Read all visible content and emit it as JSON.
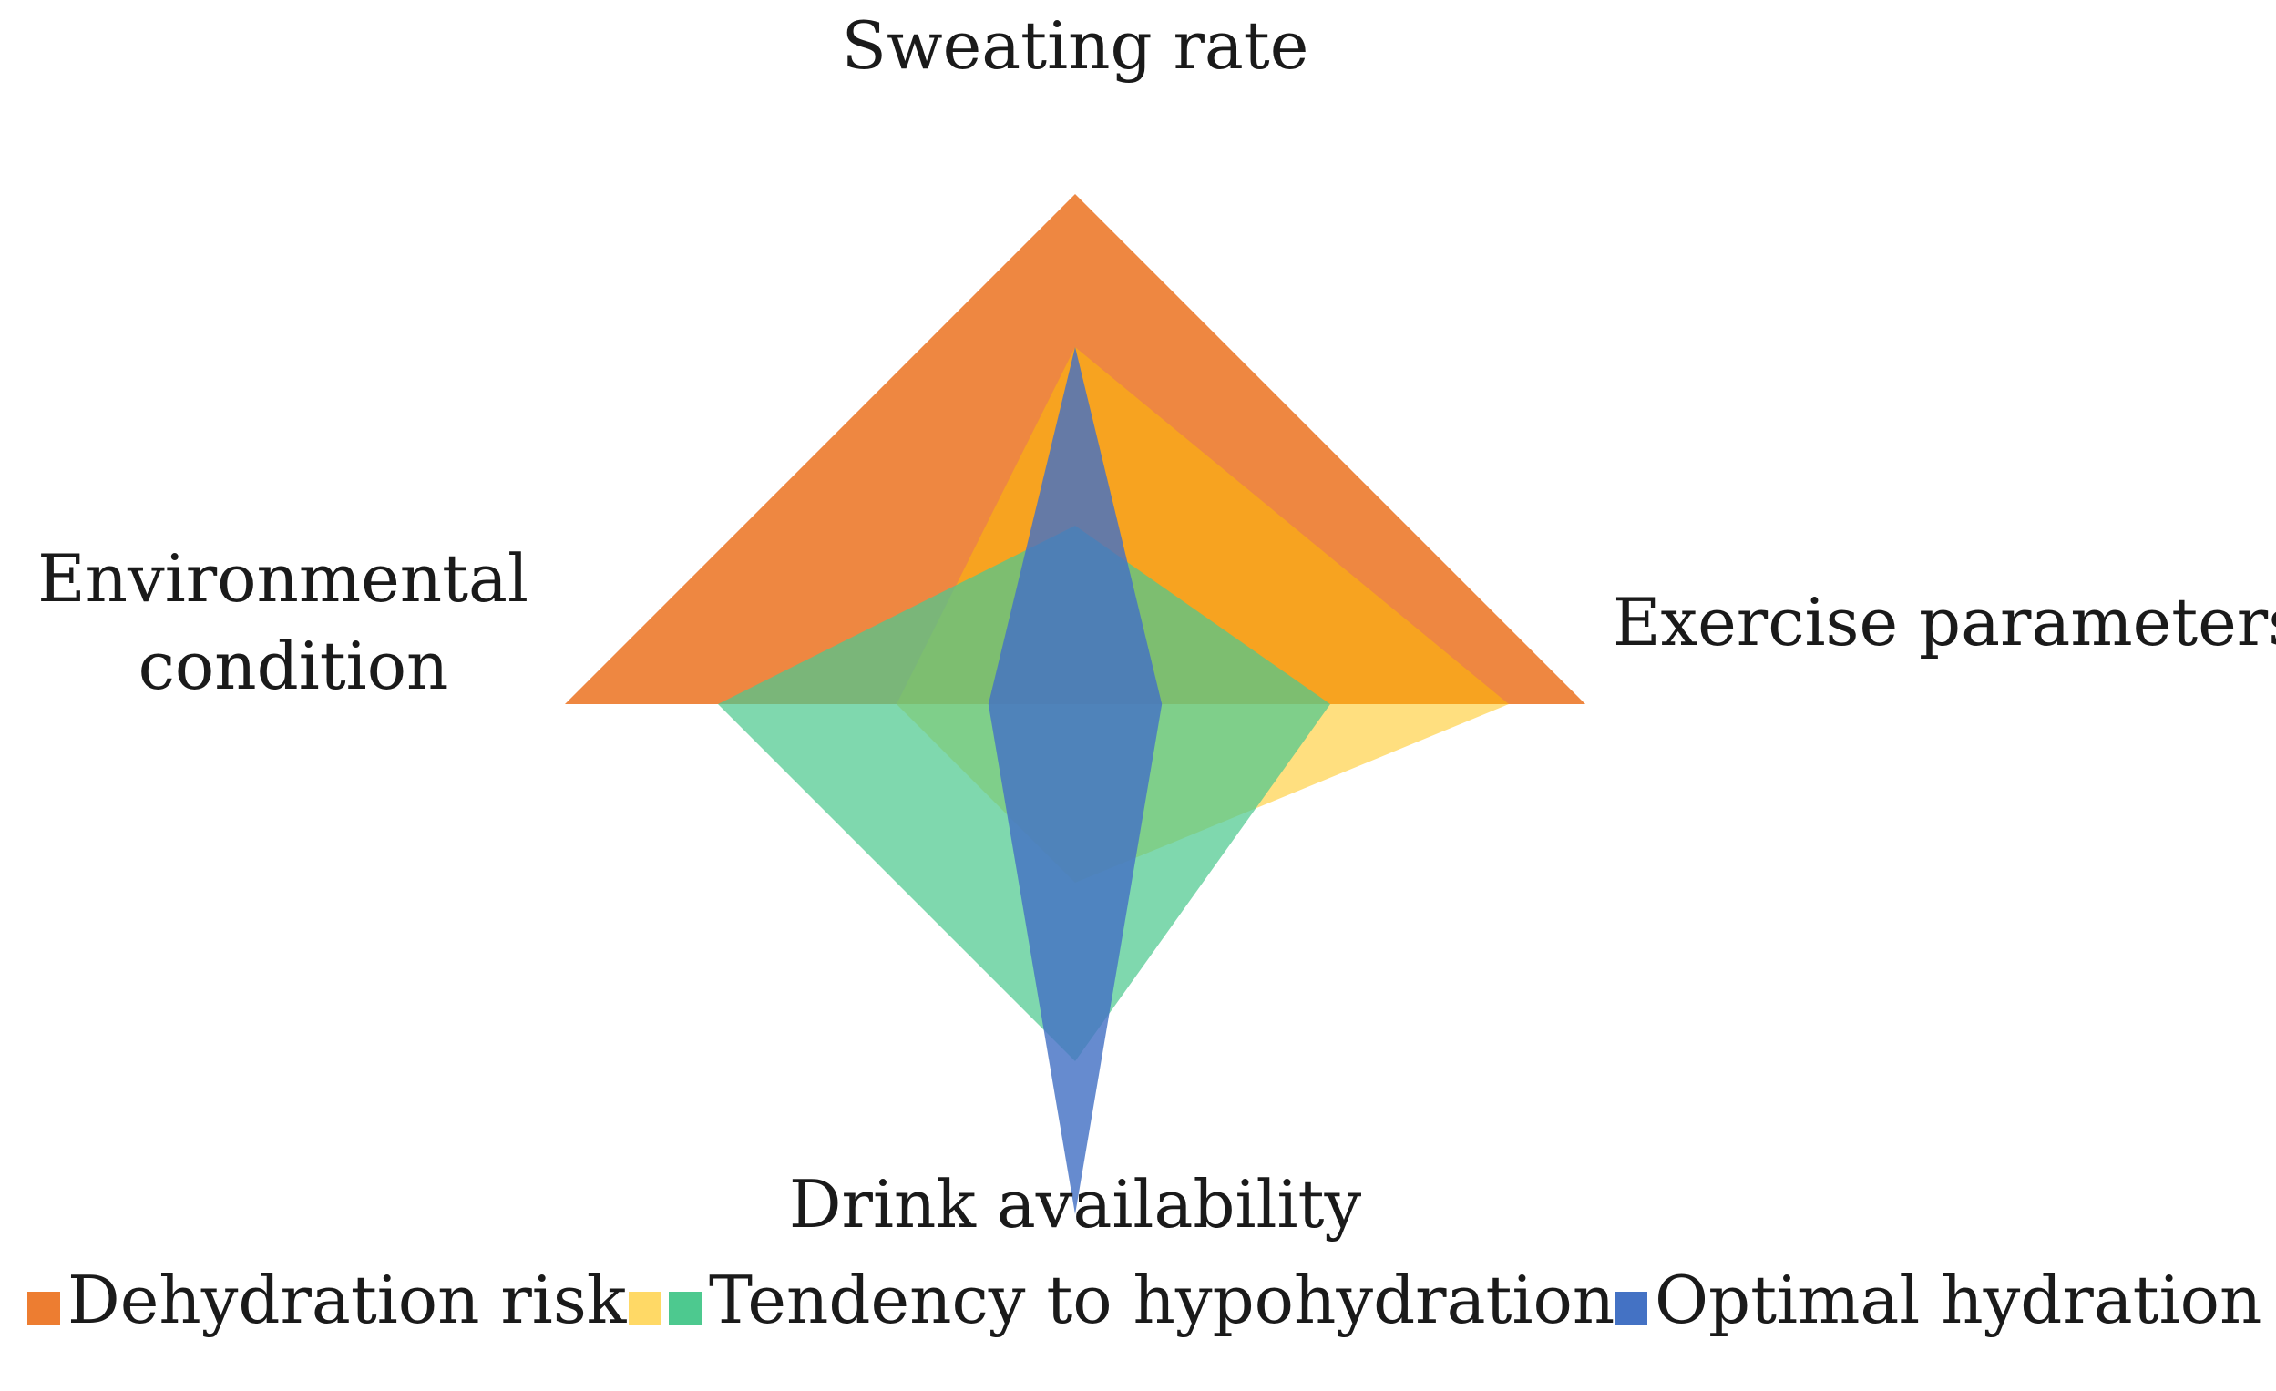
{
  "chart_data": {
    "type": "radar",
    "axes": [
      "Sweating rate",
      "Exercise parameters",
      "Drink availability",
      "Environmental condition"
    ],
    "axis_label_lines": [
      [
        "Sweating rate"
      ],
      [
        "Exercise parameters"
      ],
      [
        "Drink availability"
      ],
      [
        "Environmental",
        "condition"
      ]
    ],
    "range": [
      0,
      100
    ],
    "grid": false,
    "legend_position": "bottom",
    "series": [
      {
        "name": "Dehydration risk",
        "values": [
          100,
          100,
          0,
          100
        ],
        "color": "#ED7D31",
        "opacity": 0.92
      },
      {
        "name": "",
        "values": [
          70,
          85,
          35,
          35
        ],
        "color": "#FFC000",
        "opacity": 0.5
      },
      {
        "name": "Tendency to hypohydration",
        "values": [
          35,
          50,
          70,
          70
        ],
        "color": "#4DC98F",
        "opacity": 0.72
      },
      {
        "name": "Optimal hydration",
        "values": [
          70,
          17,
          100,
          17
        ],
        "color": "#4472C4",
        "opacity": 0.82
      }
    ],
    "legend_entries": [
      {
        "swatches": [
          "#ED7D31"
        ],
        "label": "Dehydration risk"
      },
      {
        "swatches": [
          "#FFD966",
          "#4DC98F"
        ],
        "label": "Tendency to hypohydration"
      },
      {
        "swatches": [
          "#4472C4"
        ],
        "label": "Optimal hydration"
      }
    ]
  }
}
